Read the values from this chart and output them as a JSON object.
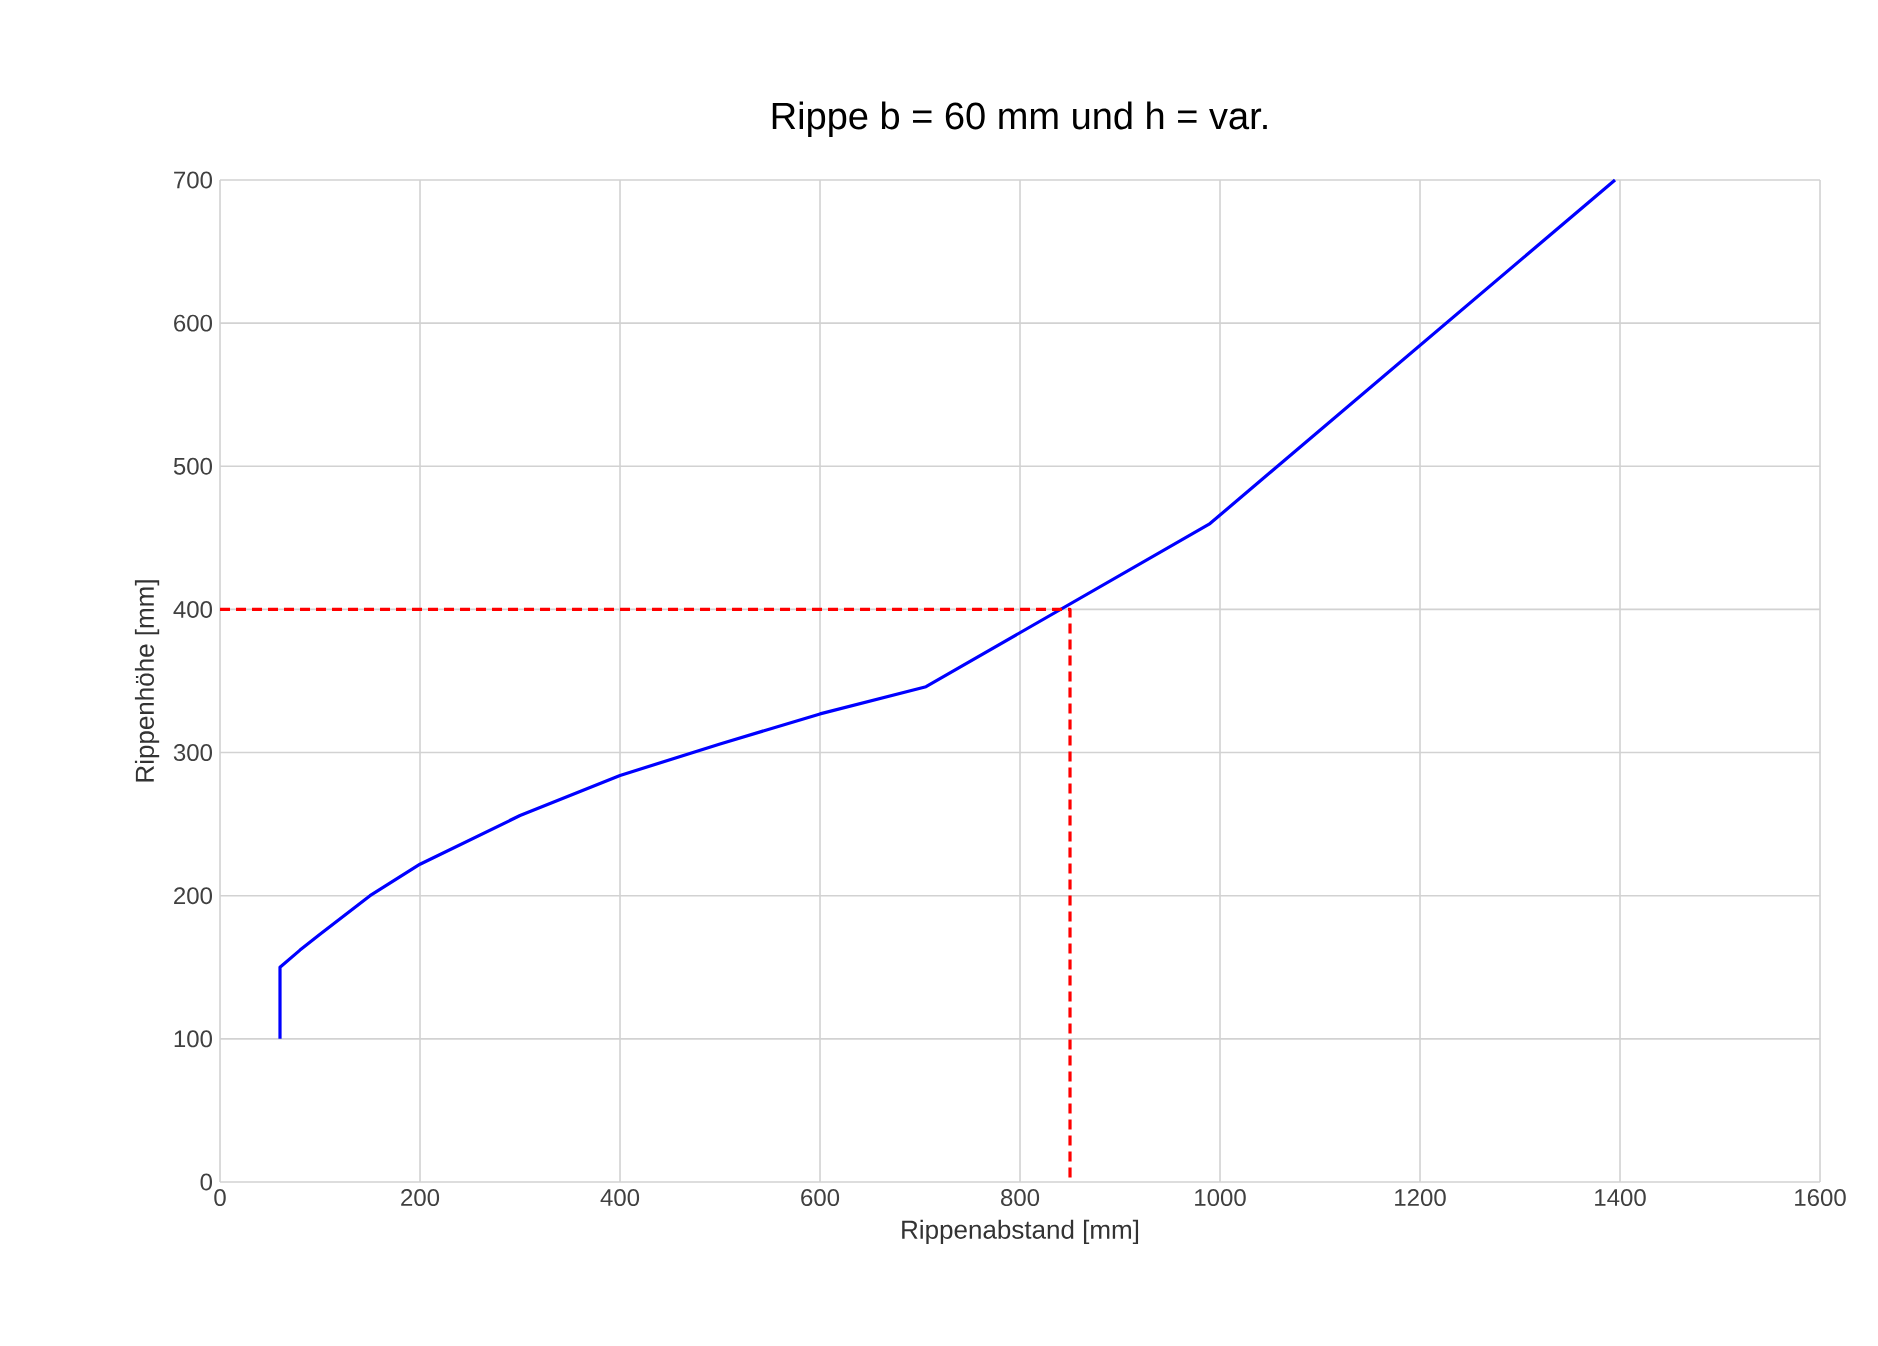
{
  "chart_data": {
    "type": "line",
    "title": "Rippe b = 60 mm und h = var.",
    "xlabel": "Rippenabstand [mm]",
    "ylabel": "Rippenhöhe [mm]",
    "xlim": [
      0,
      1600
    ],
    "xticks": [
      0,
      200,
      400,
      600,
      800,
      1000,
      1200,
      1400,
      1600
    ],
    "ylim": [
      0,
      700
    ],
    "yticks": [
      0,
      100,
      200,
      300,
      400,
      500,
      600,
      700
    ],
    "grid": true,
    "series": [
      {
        "color": "#0000ff",
        "line_style": "solid",
        "x": [
          60,
          60,
          80,
          100,
          150,
          200,
          300,
          400,
          500,
          600,
          706,
          990,
          1395
        ],
        "values": [
          100,
          150,
          162,
          173,
          200,
          222,
          256,
          284,
          306,
          327,
          346,
          460,
          700
        ]
      },
      {
        "color": "#ff0000",
        "line_style": "dashed",
        "x": [
          0,
          850,
          850
        ],
        "values": [
          400,
          400,
          0
        ]
      }
    ]
  }
}
